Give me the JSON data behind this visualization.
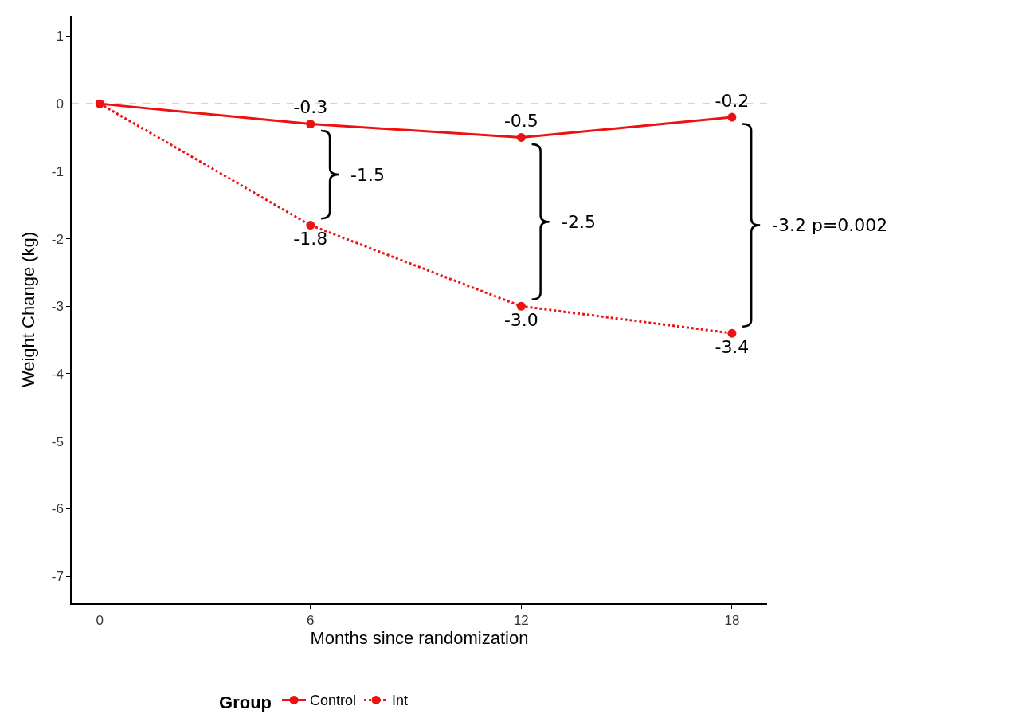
{
  "chart_data": {
    "type": "line",
    "xlabel": "Months since randomization",
    "ylabel": "Weight Change (kg)",
    "legend_title": "Group",
    "x": [
      0,
      6,
      12,
      18
    ],
    "series": [
      {
        "name": "Control",
        "color": "#ee1111",
        "values": [
          0,
          -0.3,
          -0.5,
          -0.2
        ],
        "line_style": "solid",
        "value_labels": [
          null,
          "-0.3",
          "-0.5",
          "-0.2"
        ]
      },
      {
        "name": "Int",
        "color": "#ee1111",
        "values": [
          0,
          -1.8,
          -3.0,
          -3.4
        ],
        "line_style": "dotted",
        "value_labels": [
          null,
          "-1.8",
          "-3.0",
          "-3.4"
        ]
      }
    ],
    "xlim": [
      -0.8,
      19
    ],
    "xticks": [
      0,
      6,
      12,
      18
    ],
    "ylim": [
      -7.4,
      1.3
    ],
    "yticks": [
      1,
      0,
      -1,
      -2,
      -3,
      -4,
      -5,
      -6,
      -7
    ],
    "ref_lines": [
      {
        "axis": "y",
        "value": 0,
        "color": "#888888",
        "line_style": "dashed"
      }
    ],
    "annotations": [
      "-1.5",
      "-2.5",
      "-3.2 p=0.002"
    ],
    "marker": "circle",
    "legend": "bottom",
    "grid": false
  }
}
